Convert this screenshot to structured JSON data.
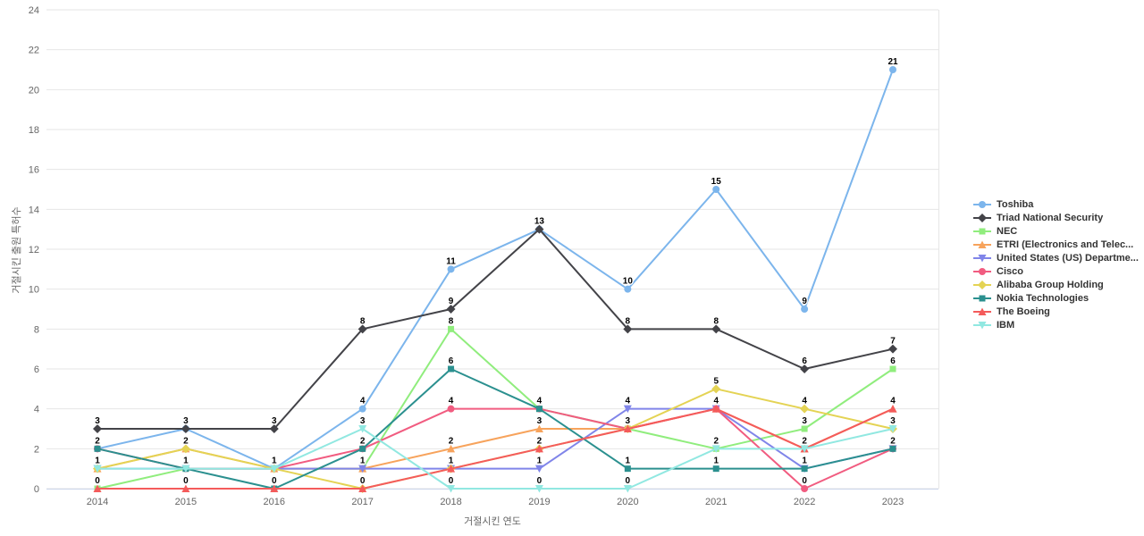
{
  "chart_data": {
    "type": "line",
    "title": "",
    "xlabel": "거절시킨 연도",
    "ylabel": "거절시킨 출원 특허수",
    "categories": [
      "2014",
      "2015",
      "2016",
      "2017",
      "2018",
      "2019",
      "2020",
      "2021",
      "2022",
      "2023"
    ],
    "ylim": [
      0,
      24
    ],
    "ytick_step": 2,
    "grid": "horizontal",
    "legend_position": "right",
    "series": [
      {
        "name": "Toshiba",
        "color": "#7cb5ec",
        "marker": "circle",
        "values": [
          2,
          3,
          1,
          4,
          11,
          13,
          10,
          15,
          9,
          21
        ]
      },
      {
        "name": "Triad National Security",
        "color": "#434348",
        "marker": "diamond",
        "values": [
          3,
          3,
          3,
          8,
          9,
          13,
          8,
          8,
          6,
          7
        ]
      },
      {
        "name": "NEC",
        "color": "#90ed7d",
        "marker": "square",
        "values": [
          0,
          1,
          1,
          1,
          8,
          4,
          3,
          2,
          3,
          6
        ]
      },
      {
        "name": "ETRI (Electronics and Telec...",
        "color": "#f7a35c",
        "marker": "triangle",
        "values": [
          1,
          2,
          1,
          1,
          2,
          3,
          3,
          4,
          2,
          4
        ]
      },
      {
        "name": "United States (US) Departme...",
        "color": "#8085e9",
        "marker": "triangle-down",
        "values": [
          1,
          1,
          1,
          1,
          1,
          1,
          4,
          4,
          1,
          2
        ]
      },
      {
        "name": "Cisco",
        "color": "#f15c80",
        "marker": "circle",
        "values": [
          2,
          1,
          1,
          2,
          4,
          4,
          3,
          4,
          0,
          2
        ]
      },
      {
        "name": "Alibaba Group Holding",
        "color": "#e4d354",
        "marker": "diamond",
        "values": [
          1,
          2,
          1,
          0,
          1,
          2,
          3,
          5,
          4,
          3
        ]
      },
      {
        "name": "Nokia Technologies",
        "color": "#2b908f",
        "marker": "square",
        "values": [
          2,
          1,
          0,
          2,
          6,
          4,
          1,
          1,
          1,
          2
        ]
      },
      {
        "name": "The Boeing",
        "color": "#f45b5b",
        "marker": "triangle",
        "values": [
          0,
          0,
          0,
          0,
          1,
          2,
          3,
          4,
          2,
          4
        ]
      },
      {
        "name": "IBM",
        "color": "#91e8e1",
        "marker": "triangle-down",
        "values": [
          1,
          1,
          1,
          3,
          0,
          0,
          0,
          2,
          2,
          3
        ]
      }
    ]
  }
}
